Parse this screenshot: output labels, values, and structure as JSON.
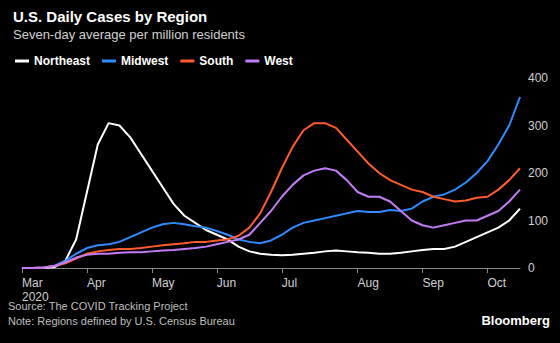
{
  "chart_data": {
    "type": "line",
    "title": "U.S. Daily Cases by Region",
    "subtitle": "Seven-day average per million residents",
    "source": "Source: The COVID Tracking Project",
    "note": "Note: Regions defined by U.S. Census Bureau",
    "credit": "Bloomberg",
    "categories": [
      "Mar\n2020",
      null,
      null,
      null,
      null,
      null,
      "Apr",
      null,
      null,
      null,
      null,
      null,
      "May",
      null,
      null,
      null,
      null,
      null,
      "Jun",
      null,
      null,
      null,
      null,
      null,
      "Jul",
      null,
      null,
      null,
      null,
      null,
      null,
      "Aug",
      null,
      null,
      null,
      null,
      null,
      "Sep",
      null,
      null,
      null,
      null,
      null,
      "Oct",
      null,
      null,
      null
    ],
    "series": [
      {
        "name": "Northeast",
        "color": "#ffffff",
        "values": [
          0,
          0,
          0,
          2,
          15,
          60,
          160,
          260,
          305,
          300,
          275,
          240,
          205,
          170,
          135,
          110,
          95,
          80,
          70,
          60,
          45,
          35,
          30,
          28,
          27,
          28,
          30,
          32,
          35,
          37,
          35,
          33,
          32,
          30,
          30,
          32,
          35,
          38,
          40,
          40,
          45,
          55,
          65,
          75,
          85,
          100,
          125
        ]
      },
      {
        "name": "Midwest",
        "color": "#2e8cff",
        "values": [
          0,
          0,
          1,
          5,
          15,
          30,
          42,
          48,
          50,
          55,
          65,
          75,
          85,
          92,
          95,
          92,
          88,
          85,
          78,
          70,
          60,
          55,
          52,
          58,
          70,
          85,
          95,
          100,
          105,
          110,
          115,
          120,
          118,
          118,
          122,
          120,
          125,
          140,
          150,
          155,
          165,
          180,
          200,
          225,
          260,
          300,
          360
        ]
      },
      {
        "name": "South",
        "color": "#ff5b2d",
        "values": [
          0,
          0,
          1,
          4,
          10,
          20,
          30,
          35,
          38,
          40,
          40,
          42,
          45,
          48,
          50,
          52,
          55,
          55,
          58,
          60,
          68,
          85,
          115,
          160,
          210,
          255,
          290,
          305,
          305,
          295,
          270,
          245,
          220,
          200,
          185,
          175,
          165,
          160,
          150,
          145,
          140,
          142,
          148,
          150,
          165,
          185,
          210
        ]
      },
      {
        "name": "West",
        "color": "#c27cf5",
        "values": [
          0,
          0,
          1,
          4,
          12,
          22,
          28,
          30,
          30,
          32,
          33,
          33,
          35,
          37,
          38,
          40,
          42,
          45,
          50,
          55,
          60,
          70,
          95,
          120,
          150,
          175,
          195,
          205,
          210,
          205,
          185,
          160,
          150,
          150,
          140,
          120,
          100,
          90,
          85,
          90,
          95,
          100,
          100,
          110,
          120,
          140,
          165
        ]
      }
    ],
    "ylim": [
      0,
      400
    ],
    "yticks": [
      0,
      100,
      200,
      300,
      400
    ],
    "grid": false,
    "legend": "top-left"
  }
}
